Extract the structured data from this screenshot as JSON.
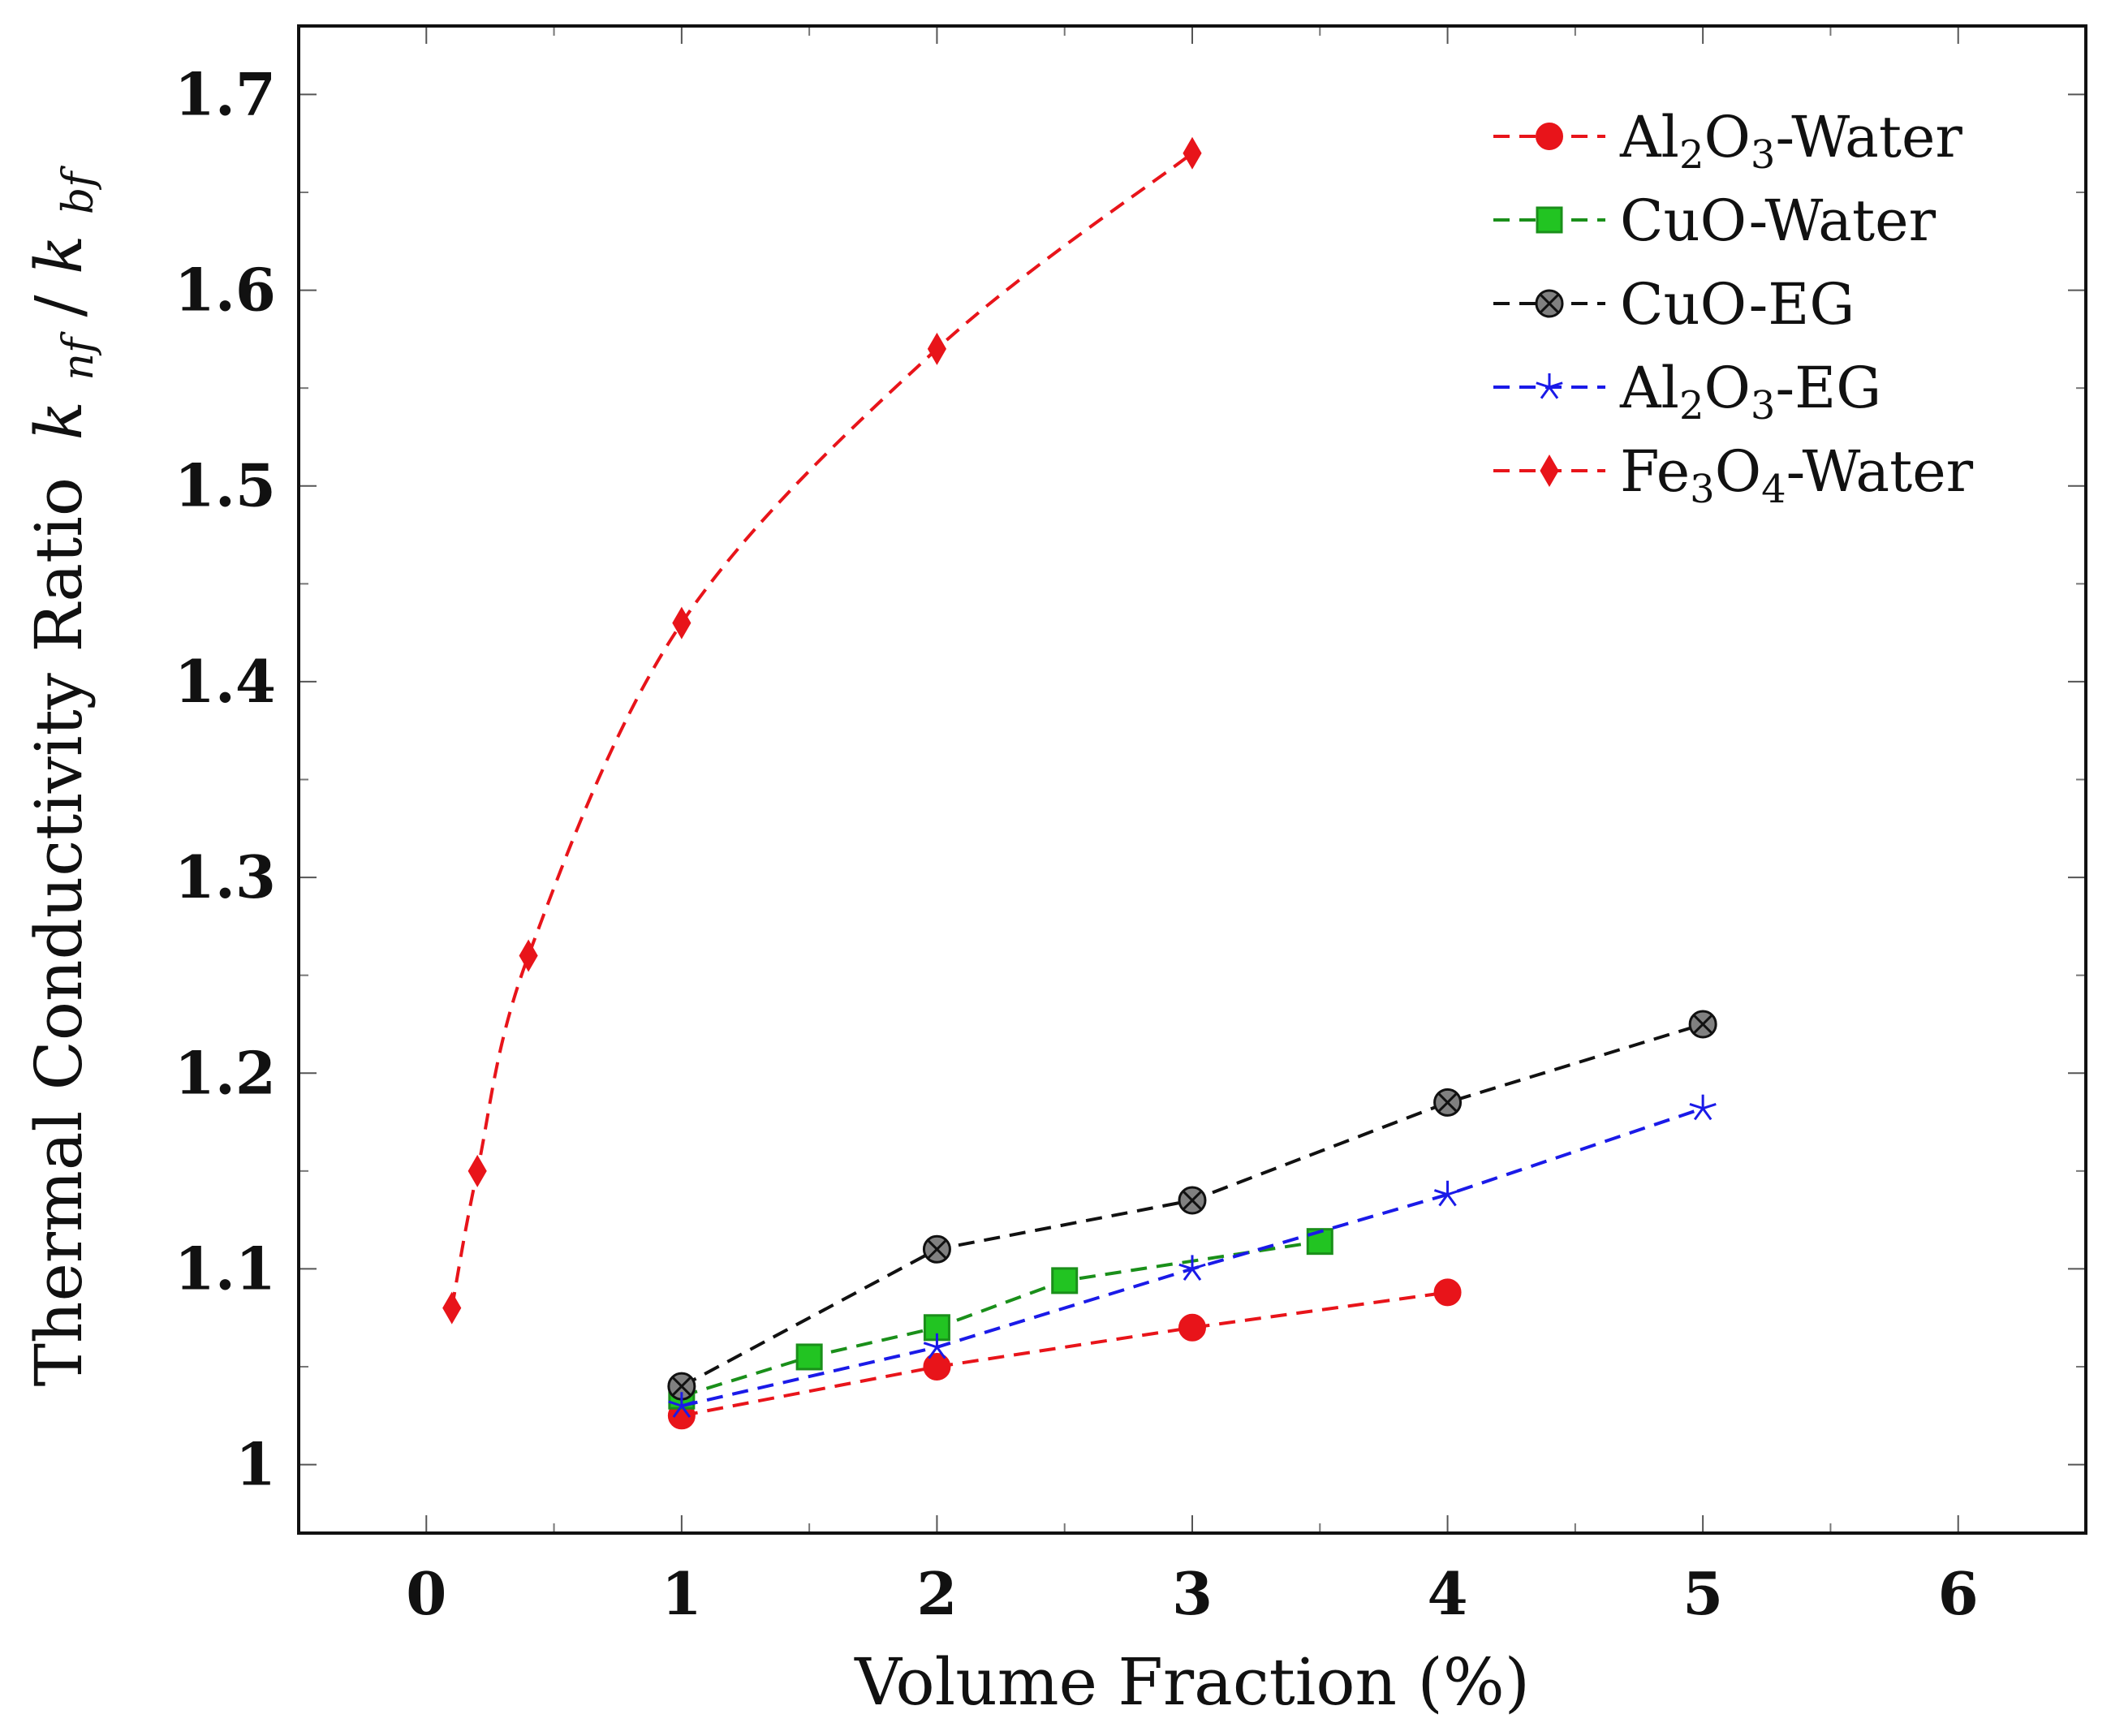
{
  "chart_data": {
    "type": "line",
    "title": "",
    "xlabel": "Volume Fraction (%)",
    "ylabel_text": "Thermal Conductivity Ratio",
    "ylabel_math": "k",
    "ylabel_sub1": "nf",
    "ylabel_slash": "/",
    "ylabel_sub2": "bf",
    "xlim": [
      -0.5,
      6.5
    ],
    "ylim": [
      0.965,
      1.735
    ],
    "x_ticks": [
      0,
      1,
      2,
      3,
      4,
      5,
      6
    ],
    "x_tick_labels": [
      "0",
      "1",
      "2",
      "3",
      "4",
      "5",
      "6"
    ],
    "y_ticks": [
      1.0,
      1.1,
      1.2,
      1.3,
      1.4,
      1.5,
      1.6,
      1.7
    ],
    "y_tick_labels": [
      "1",
      "1.1",
      "1.2",
      "1.3",
      "1.4",
      "1.5",
      "1.6",
      "1.7"
    ],
    "grid": false,
    "legend_position": "top-right",
    "series": [
      {
        "name": "Al2O3-Water",
        "legend": {
          "a": "Al",
          "s1": "2",
          "b": "O",
          "s2": "3",
          "c": "-Water"
        },
        "color": "#e8141a",
        "marker": "circle",
        "smooth": false,
        "x": [
          1,
          2,
          3,
          4
        ],
        "y": [
          1.025,
          1.05,
          1.07,
          1.088
        ]
      },
      {
        "name": "CuO-Water",
        "legend": {
          "a": "CuO-Water",
          "s1": "",
          "b": "",
          "s2": "",
          "c": ""
        },
        "color": "#1a8f1a",
        "fill": "#22c422",
        "marker": "square",
        "smooth": false,
        "x": [
          1,
          1.5,
          2,
          2.5,
          3.5
        ],
        "y": [
          1.035,
          1.055,
          1.07,
          1.094,
          1.114
        ]
      },
      {
        "name": "CuO-EG",
        "legend": {
          "a": "CuO-EG",
          "s1": "",
          "b": "",
          "s2": "",
          "c": ""
        },
        "color": "#111111",
        "fill": "#808080",
        "marker": "otimes",
        "smooth": false,
        "x": [
          1,
          2,
          3,
          4,
          5
        ],
        "y": [
          1.04,
          1.11,
          1.135,
          1.185,
          1.225
        ]
      },
      {
        "name": "Al2O3-EG",
        "legend": {
          "a": "Al",
          "s1": "2",
          "b": "O",
          "s2": "3",
          "c": "-EG"
        },
        "color": "#1a1ae8",
        "marker": "star",
        "smooth": false,
        "x": [
          1,
          2,
          3,
          4,
          5
        ],
        "y": [
          1.03,
          1.06,
          1.1,
          1.138,
          1.182
        ]
      },
      {
        "name": "Fe3O4-Water",
        "legend": {
          "a": "Fe",
          "s1": "3",
          "b": "O",
          "s2": "4",
          "c": "-Water"
        },
        "color": "#e8141a",
        "marker": "diamond",
        "smooth": true,
        "x": [
          0.1,
          0.2,
          0.4,
          1,
          2,
          3
        ],
        "y": [
          1.08,
          1.15,
          1.26,
          1.43,
          1.57,
          1.67
        ]
      }
    ]
  }
}
